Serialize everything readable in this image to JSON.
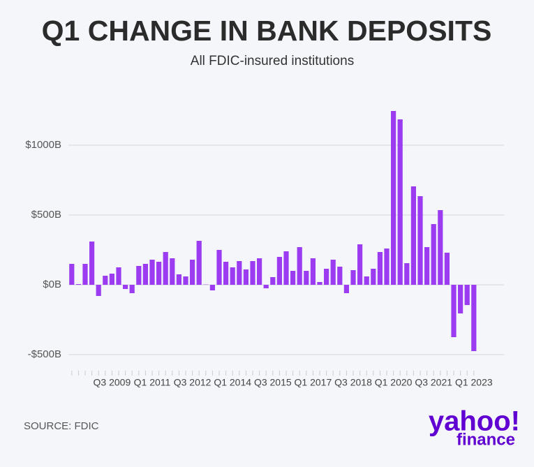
{
  "chart_data": {
    "type": "bar",
    "title": "Q1 CHANGE IN BANK DEPOSITS",
    "subtitle": "All FDIC-insured institutions",
    "source": "SOURCE: FDIC",
    "logo": {
      "main": "yahoo!",
      "sub": "finance"
    },
    "color": "#9b3cf0",
    "grid": true,
    "categories": [
      null,
      null,
      null,
      null,
      null,
      null,
      "Q3 2009",
      null,
      null,
      null,
      null,
      null,
      "Q1 2011",
      null,
      null,
      null,
      null,
      null,
      "Q3 2012",
      null,
      null,
      null,
      null,
      null,
      "Q1 2014",
      null,
      null,
      null,
      null,
      null,
      "Q3 2015",
      null,
      null,
      null,
      null,
      null,
      "Q1 2017",
      null,
      null,
      null,
      null,
      null,
      "Q3 2018",
      null,
      null,
      null,
      null,
      null,
      "Q1 2020",
      null,
      null,
      null,
      null,
      null,
      "Q3 2021",
      null,
      null,
      null,
      null,
      null,
      "Q1 2023"
    ],
    "values": [
      150,
      5,
      150,
      310,
      -80,
      65,
      80,
      125,
      -30,
      -60,
      135,
      150,
      180,
      165,
      235,
      190,
      75,
      60,
      180,
      315,
      2,
      -40,
      250,
      165,
      125,
      170,
      110,
      170,
      190,
      -25,
      55,
      200,
      240,
      100,
      270,
      100,
      190,
      20,
      115,
      180,
      130,
      -60,
      105,
      290,
      60,
      115,
      235,
      260,
      1245,
      1185,
      155,
      705,
      635,
      270,
      435,
      535,
      230,
      -375,
      -205,
      -145,
      -475
    ],
    "ylim": [
      -600,
      1300
    ],
    "yticks": [
      {
        "value": -500,
        "label": "-$500B"
      },
      {
        "value": 0,
        "label": "$0B"
      },
      {
        "value": 500,
        "label": "$500B"
      },
      {
        "value": 1000,
        "label": "$1000B"
      }
    ]
  }
}
